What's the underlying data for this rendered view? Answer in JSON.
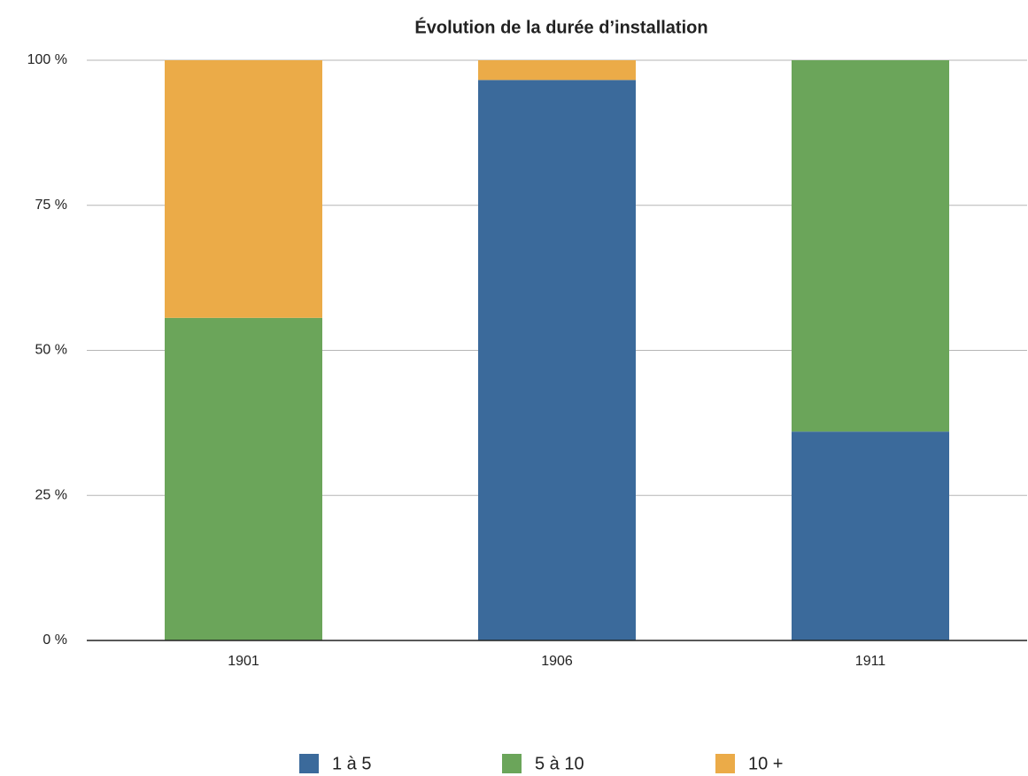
{
  "chart_data": {
    "type": "stacked_bar",
    "title": "Évolution de la durée d’installation",
    "categories": [
      "1901",
      "1906",
      "1911"
    ],
    "series": [
      {
        "name": "1 à 5",
        "color": "#3b6a9b",
        "values": [
          0,
          96.6,
          36.0
        ]
      },
      {
        "name": "5 à 10",
        "color": "#6ba55a",
        "values": [
          55.6,
          0,
          64.0
        ]
      },
      {
        "name": "10 +",
        "color": "#ebab48",
        "values": [
          44.4,
          3.4,
          0
        ]
      }
    ],
    "ylim": [
      0,
      100
    ],
    "yticks": [
      {
        "value": 0,
        "label": "0 %"
      },
      {
        "value": 25,
        "label": "25 %"
      },
      {
        "value": 50,
        "label": "50 %"
      },
      {
        "value": 75,
        "label": "75 %"
      },
      {
        "value": 100,
        "label": "100 %"
      }
    ],
    "grid": true,
    "legend": "bottom"
  }
}
